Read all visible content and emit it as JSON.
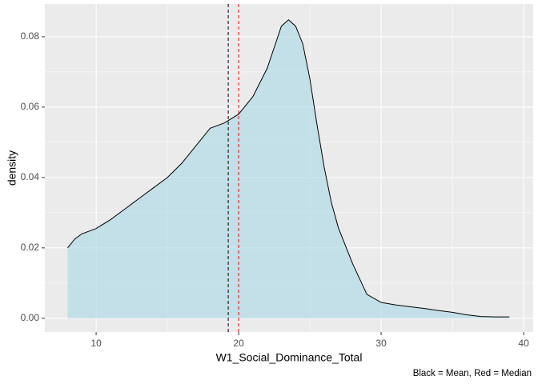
{
  "chart_data": {
    "type": "density",
    "x_label": "W1_Social_Dominance_Total",
    "y_label": "density",
    "caption": "Black = Mean, Red = Median",
    "x": [
      8,
      8.5,
      9,
      10,
      11,
      12,
      13,
      14,
      15,
      16,
      17,
      18,
      19,
      20,
      21,
      22,
      22.5,
      23,
      23.5,
      24,
      24.5,
      25,
      25.5,
      26,
      26.5,
      27,
      28,
      29,
      30,
      31,
      32,
      33,
      34,
      35,
      36,
      37,
      38,
      39
    ],
    "values": [
      0.02,
      0.0225,
      0.024,
      0.0255,
      0.028,
      0.031,
      0.034,
      0.037,
      0.04,
      0.044,
      0.049,
      0.054,
      0.0555,
      0.058,
      0.063,
      0.071,
      0.077,
      0.083,
      0.0848,
      0.083,
      0.078,
      0.068,
      0.055,
      0.043,
      0.033,
      0.0257,
      0.0155,
      0.0068,
      0.0045,
      0.0038,
      0.0033,
      0.0028,
      0.0022,
      0.0017,
      0.001,
      0.0005,
      0.0004,
      0.0004
    ],
    "fill": "#add8e6",
    "line_color": "#000000",
    "reference_lines": [
      {
        "value": 19.27,
        "color": "#000000"
      },
      {
        "value": 20,
        "color": "#ff0000"
      }
    ],
    "xlim": [
      6.4,
      40.67
    ],
    "ylim": [
      -0.0039,
      0.0893
    ],
    "xticks": [
      10,
      20,
      30,
      40
    ],
    "yticks": [
      {
        "value": 0,
        "label": "0.00"
      },
      {
        "value": 0.02,
        "label": "0.02"
      },
      {
        "value": 0.04,
        "label": "0.04"
      },
      {
        "value": 0.06,
        "label": "0.06"
      },
      {
        "value": 0.08,
        "label": "0.08"
      }
    ],
    "grid": true
  }
}
